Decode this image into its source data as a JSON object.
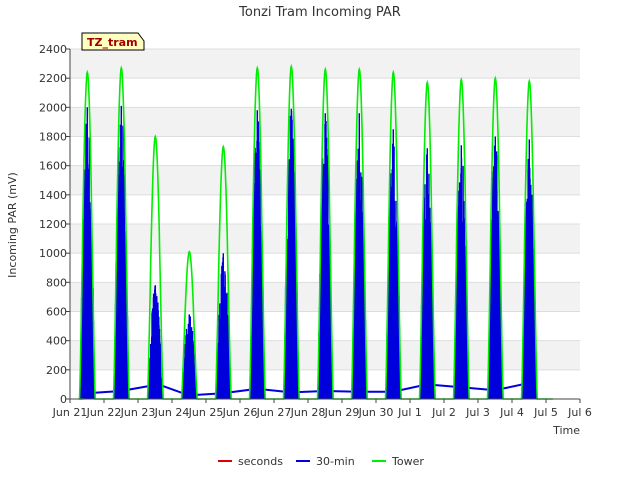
{
  "chart_data": {
    "type": "line",
    "title": "Tonzi Tram Incoming PAR",
    "xlabel": "Time",
    "ylabel": "Incoming PAR (mV)",
    "ylim": [
      0,
      2400
    ],
    "yticks": [
      0,
      200,
      400,
      600,
      800,
      1000,
      1200,
      1400,
      1600,
      1800,
      2000,
      2200,
      2400
    ],
    "xlim": [
      0,
      15
    ],
    "xticks": [
      0,
      1,
      2,
      3,
      4,
      5,
      6,
      7,
      8,
      9,
      10,
      11,
      12,
      13,
      14,
      15
    ],
    "xtick_labels": [
      "Jun 21",
      "Jun 22",
      "Jun 23",
      "Jun 24",
      "Jun 25",
      "Jun 26",
      "Jun 27",
      "Jun 28",
      "Jun 29",
      "Jun 30",
      "Jul 1",
      "Jul 2",
      "Jul 3",
      "Jul 4",
      "Jul 5",
      "Jul 6"
    ],
    "grid": "horizontal-bands",
    "annotation": "TZ_tram",
    "legend": {
      "position": "bottom-center",
      "entries": [
        {
          "name": "seconds",
          "color": "#dd0000"
        },
        {
          "name": "30-min",
          "color": "#0000dd"
        },
        {
          "name": "Tower",
          "color": "#00ee00"
        }
      ]
    },
    "series": [
      {
        "name": "30-min",
        "color": "#0000dd",
        "render": "dense-spikes",
        "daily_peaks": [
          {
            "day": 0,
            "peak": 2000
          },
          {
            "day": 1,
            "peak": 2010
          },
          {
            "day": 2,
            "peak": 780
          },
          {
            "day": 3,
            "peak": 580
          },
          {
            "day": 4,
            "peak": 1000
          },
          {
            "day": 5,
            "peak": 1980
          },
          {
            "day": 6,
            "peak": 1990
          },
          {
            "day": 7,
            "peak": 1960
          },
          {
            "day": 8,
            "peak": 1960
          },
          {
            "day": 9,
            "peak": 1850
          },
          {
            "day": 10,
            "peak": 1720
          },
          {
            "day": 11,
            "peak": 1740
          },
          {
            "day": 12,
            "peak": 1800
          },
          {
            "day": 13,
            "peak": 1780
          }
        ],
        "night_baseline": [
          {
            "x": 0.5,
            "y": 40
          },
          {
            "x": 1.5,
            "y": 55
          },
          {
            "x": 2.6,
            "y": 100
          },
          {
            "x": 3.5,
            "y": 25
          },
          {
            "x": 4.5,
            "y": 40
          },
          {
            "x": 5.5,
            "y": 70
          },
          {
            "x": 6.5,
            "y": 45
          },
          {
            "x": 7.5,
            "y": 55
          },
          {
            "x": 8.5,
            "y": 50
          },
          {
            "x": 9.5,
            "y": 50
          },
          {
            "x": 10.5,
            "y": 100
          },
          {
            "x": 11.5,
            "y": 80
          },
          {
            "x": 12.5,
            "y": 60
          },
          {
            "x": 13.5,
            "y": 110
          }
        ]
      },
      {
        "name": "Tower",
        "color": "#00ee00",
        "render": "line",
        "daily_peaks": [
          {
            "day": 0,
            "peak": 2240
          },
          {
            "day": 1,
            "peak": 2270
          },
          {
            "day": 2,
            "peak": 1800
          },
          {
            "day": 3,
            "peak": 1010
          },
          {
            "day": 4,
            "peak": 1730
          },
          {
            "day": 5,
            "peak": 2270
          },
          {
            "day": 6,
            "peak": 2280
          },
          {
            "day": 7,
            "peak": 2260
          },
          {
            "day": 8,
            "peak": 2260
          },
          {
            "day": 9,
            "peak": 2240
          },
          {
            "day": 10,
            "peak": 2170
          },
          {
            "day": 11,
            "peak": 2190
          },
          {
            "day": 12,
            "peak": 2200
          },
          {
            "day": 13,
            "peak": 2180
          }
        ]
      },
      {
        "name": "seconds",
        "color": "#dd0000",
        "render": "none",
        "values": []
      }
    ]
  }
}
